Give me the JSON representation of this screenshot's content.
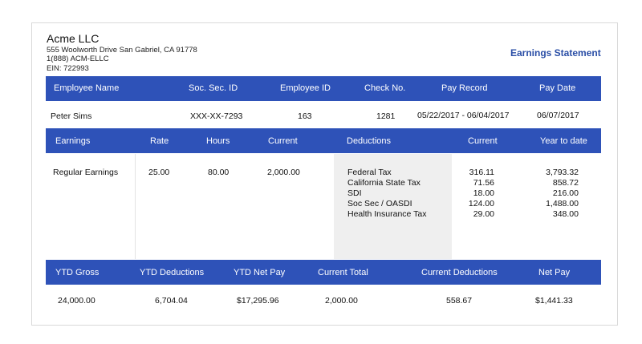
{
  "company": {
    "name": "Acme LLC",
    "address": "555 Woolworth Drive San Gabriel, CA 91778",
    "phone": "1(888) ACM-ELLC",
    "ein": "EIN: 722993"
  },
  "statement_title": "Earnings Statement",
  "employee_header": {
    "name": "Employee Name",
    "ssn": "Soc. Sec. ID",
    "employee_id": "Employee ID",
    "check_no": "Check No.",
    "pay_record": "Pay Record",
    "pay_date": "Pay Date"
  },
  "employee": {
    "name": "Peter Sims",
    "ssn": "XXX-XX-7293",
    "employee_id": "163",
    "check_no": "1281",
    "pay_record": "05/22/2017 - 06/04/2017",
    "pay_date": "06/07/2017"
  },
  "earnings_header": {
    "earnings": "Earnings",
    "rate": "Rate",
    "hours": "Hours",
    "current": "Current",
    "deductions": "Deductions",
    "ded_current": "Current",
    "ytd": "Year to date"
  },
  "earnings": {
    "label": "Regular Earnings",
    "rate": "25.00",
    "hours": "80.00",
    "current": "2,000.00"
  },
  "deductions": [
    {
      "name": "Federal Tax",
      "current": "316.11",
      "ytd": "3,793.32"
    },
    {
      "name": "California State Tax",
      "current": "71.56",
      "ytd": "858.72"
    },
    {
      "name": "SDI",
      "current": "18.00",
      "ytd": "216.00"
    },
    {
      "name": "Soc Sec / OASDI",
      "current": "124.00",
      "ytd": "1,488.00"
    },
    {
      "name": "Health Insurance Tax",
      "current": "29.00",
      "ytd": "348.00"
    }
  ],
  "totals_header": {
    "ytd_gross": "YTD Gross",
    "ytd_deductions": "YTD Deductions",
    "ytd_net": "YTD Net Pay",
    "current_total": "Current Total",
    "current_deductions": "Current Deductions",
    "net_pay": "Net Pay"
  },
  "totals": {
    "ytd_gross": "24,000.00",
    "ytd_deductions": "6,704.04",
    "ytd_net": "$17,295.96",
    "current_total": "2,000.00",
    "current_deductions": "558.67",
    "net_pay": "$1,441.33"
  },
  "colors": {
    "header_bar": "#2e52b8",
    "title": "#2a4ea6",
    "shade": "#efefef"
  }
}
